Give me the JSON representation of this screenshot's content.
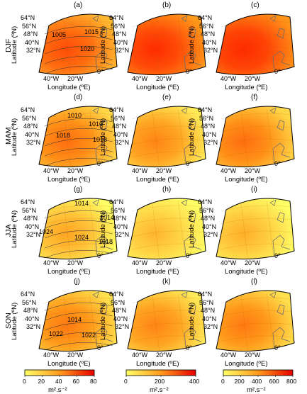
{
  "seasons": [
    "DJF",
    "MAM",
    "JJA",
    "SON"
  ],
  "panel_labels": [
    [
      "(a)",
      "(b)",
      "(c)"
    ],
    [
      "(d)",
      "(e)",
      "(f)"
    ],
    [
      "(g)",
      "(h)",
      "(i)"
    ],
    [
      "(j)",
      "(k)",
      "(l)"
    ]
  ],
  "lat_ticks": [
    "64°N",
    "56°N",
    "48°N",
    "40°N",
    "32°N"
  ],
  "lon_ticks": [
    "40°W",
    "20°W",
    "0°"
  ],
  "x_label": "Longitude (ºE)",
  "y_label": "Latitude (ºN)",
  "contours": {
    "a": [
      "1005",
      "1015",
      "1020"
    ],
    "d": [
      "1010",
      "1010",
      "1018",
      "1018"
    ],
    "g": [
      "1014",
      "1014",
      "1024",
      "1024",
      "1018"
    ],
    "j": [
      "1014",
      "1022",
      "1022"
    ]
  },
  "colorbars": [
    {
      "ticks": [
        "0",
        "20",
        "40",
        "60",
        "80"
      ],
      "unit": "m².s⁻²"
    },
    {
      "ticks": [
        "0",
        "200",
        "400"
      ],
      "unit": "m².s⁻²"
    },
    {
      "ticks": [
        "0",
        "200",
        "400",
        "600",
        "800"
      ],
      "unit": "m².s⁻²"
    }
  ],
  "colors": {
    "yellow": "#ffff66",
    "orange": "#ff9a1a",
    "red": "#ff2a00",
    "deep_red": "#e80000",
    "land_outline": "#6b6b6b",
    "contour": "#333333"
  },
  "intensity": [
    [
      0.7,
      0.85,
      0.88
    ],
    [
      0.55,
      0.45,
      0.55
    ],
    [
      0.3,
      0.22,
      0.25
    ],
    [
      0.5,
      0.45,
      0.5
    ]
  ]
}
